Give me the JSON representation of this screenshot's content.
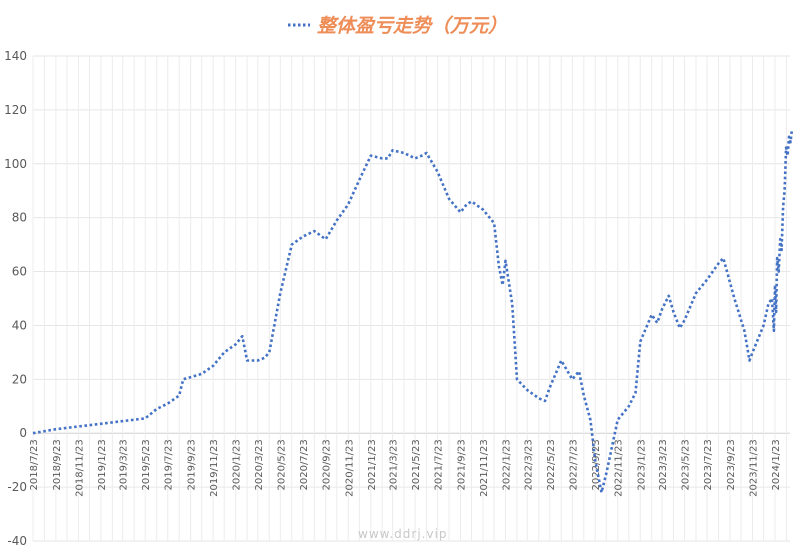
{
  "chart_data": {
    "type": "line",
    "title": "整体盈亏走势（万元）",
    "watermark": "www.ddrj.vip",
    "legend_position": "top",
    "grid": true,
    "ylim": [
      -40,
      140
    ],
    "yticks": [
      "-40",
      "-20",
      "0",
      "20",
      "40",
      "60",
      "80",
      "100",
      "120",
      "140"
    ],
    "xticks": [
      "2018/7/23",
      "2018/9/23",
      "2018/11/23",
      "2019/1/23",
      "2019/3/23",
      "2019/5/23",
      "2019/7/23",
      "2019/9/23",
      "2019/11/23",
      "2020/1/23",
      "2020/3/23",
      "2020/5/23",
      "2020/7/23",
      "2020/9/23",
      "2020/11/23",
      "2021/1/23",
      "2021/3/23",
      "2021/5/23",
      "2021/7/23",
      "2021/9/23",
      "2021/11/23",
      "2022/1/23",
      "2022/3/23",
      "2022/5/23",
      "2022/7/23",
      "2022/9/23",
      "2022/11/23",
      "2023/1/23",
      "2023/3/23",
      "2023/5/23",
      "2023/7/23",
      "2023/9/23",
      "2023/11/23",
      "2024/1/23"
    ],
    "series": [
      {
        "name": "整体盈亏走势（万元）",
        "color": "#4472c4",
        "points": [
          [
            "2018/7/23",
            0
          ],
          [
            "2018/9/23",
            1.5
          ],
          [
            "2018/11/23",
            2.5
          ],
          [
            "2019/1/23",
            3.5
          ],
          [
            "2019/3/23",
            4.5
          ],
          [
            "2019/5/23",
            5.5
          ],
          [
            "2019/6/23",
            9
          ],
          [
            "2019/7/23",
            11
          ],
          [
            "2019/8/23",
            14
          ],
          [
            "2019/9/3",
            20
          ],
          [
            "2019/10/23",
            22
          ],
          [
            "2019/11/23",
            25
          ],
          [
            "2019/12/23",
            30
          ],
          [
            "2020/1/23",
            33
          ],
          [
            "2020/2/10",
            36
          ],
          [
            "2020/2/23",
            27
          ],
          [
            "2020/3/23",
            27
          ],
          [
            "2020/4/10",
            28
          ],
          [
            "2020/4/23",
            30
          ],
          [
            "2020/5/23",
            52
          ],
          [
            "2020/6/23",
            70
          ],
          [
            "2020/7/23",
            73
          ],
          [
            "2020/8/23",
            75
          ],
          [
            "2020/9/23",
            72
          ],
          [
            "2020/10/23",
            79
          ],
          [
            "2020/11/23",
            85
          ],
          [
            "2020/12/23",
            94
          ],
          [
            "2021/1/23",
            103
          ],
          [
            "2021/2/23",
            102
          ],
          [
            "2021/3/10",
            102
          ],
          [
            "2021/3/23",
            105
          ],
          [
            "2021/4/23",
            104
          ],
          [
            "2021/5/23",
            102
          ],
          [
            "2021/6/10",
            103
          ],
          [
            "2021/6/23",
            104
          ],
          [
            "2021/7/23",
            97
          ],
          [
            "2021/8/23",
            87
          ],
          [
            "2021/9/23",
            82
          ],
          [
            "2021/10/10",
            85
          ],
          [
            "2021/10/23",
            86
          ],
          [
            "2021/11/23",
            83
          ],
          [
            "2021/12/23",
            78
          ],
          [
            "2022/1/5",
            62
          ],
          [
            "2022/1/15",
            55
          ],
          [
            "2022/1/23",
            64
          ],
          [
            "2022/2/10",
            48
          ],
          [
            "2022/2/23",
            20
          ],
          [
            "2022/3/23",
            16
          ],
          [
            "2022/4/23",
            13
          ],
          [
            "2022/5/10",
            12
          ],
          [
            "2022/5/23",
            17
          ],
          [
            "2022/6/23",
            27
          ],
          [
            "2022/7/23",
            20
          ],
          [
            "2022/8/10",
            23
          ],
          [
            "2022/8/23",
            14
          ],
          [
            "2022/9/10",
            5
          ],
          [
            "2022/9/23",
            -10
          ],
          [
            "2022/10/10",
            -22
          ],
          [
            "2022/10/23",
            -15
          ],
          [
            "2022/11/23",
            5
          ],
          [
            "2022/12/23",
            10
          ],
          [
            "2023/1/10",
            15
          ],
          [
            "2023/1/23",
            34
          ],
          [
            "2023/2/23",
            44
          ],
          [
            "2023/3/10",
            41
          ],
          [
            "2023/3/23",
            46
          ],
          [
            "2023/4/10",
            51
          ],
          [
            "2023/4/23",
            45
          ],
          [
            "2023/5/10",
            39
          ],
          [
            "2023/5/23",
            42
          ],
          [
            "2023/6/23",
            52
          ],
          [
            "2023/7/23",
            57
          ],
          [
            "2023/8/23",
            63
          ],
          [
            "2023/9/5",
            65
          ],
          [
            "2023/10/5",
            50
          ],
          [
            "2023/11/1",
            38
          ],
          [
            "2023/11/15",
            27
          ],
          [
            "2023/11/23",
            30
          ],
          [
            "2023/12/23",
            40
          ],
          [
            "2024/1/5",
            48
          ],
          [
            "2024/1/15",
            50
          ],
          [
            "2024/1/20",
            38
          ],
          [
            "2024/1/23",
            55
          ],
          [
            "2024/1/26",
            45
          ],
          [
            "2024/1/29",
            65
          ],
          [
            "2024/2/2",
            60
          ],
          [
            "2024/2/6",
            72
          ],
          [
            "2024/2/10",
            68
          ],
          [
            "2024/2/14",
            84
          ],
          [
            "2024/2/18",
            90
          ],
          [
            "2024/2/22",
            106
          ],
          [
            "2024/2/26",
            103
          ],
          [
            "2024/3/1",
            110
          ],
          [
            "2024/3/5",
            108
          ],
          [
            "2024/3/9",
            113
          ]
        ]
      }
    ]
  }
}
